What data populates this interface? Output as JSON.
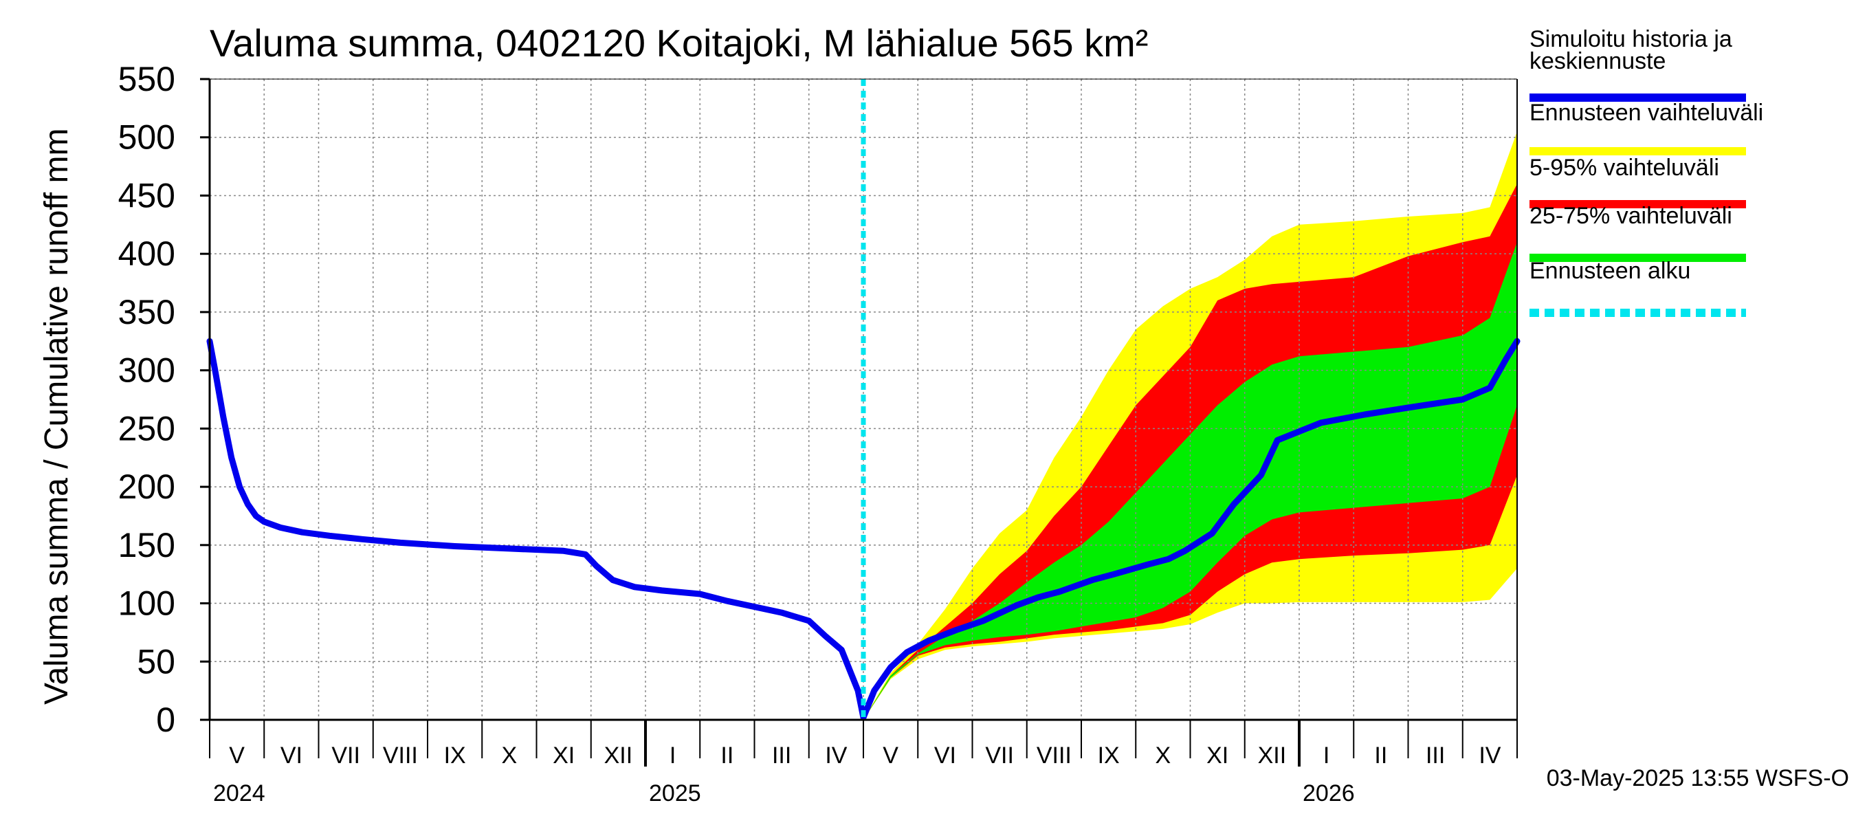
{
  "chart_data": {
    "type": "area",
    "title": "Valuma summa, 0402120 Koitajoki, M lähialue 565 km²",
    "ylabel": "Valuma summa / Cumulative runoff    mm",
    "xlabel": "",
    "ylim": [
      0,
      550
    ],
    "yticks": [
      0,
      50,
      100,
      150,
      200,
      250,
      300,
      350,
      400,
      450,
      500,
      550
    ],
    "grid": true,
    "x_unit": "months since 2024-05-01",
    "xlim": [
      0,
      24
    ],
    "forecast_start": 12,
    "month_labels": [
      {
        "label": "V",
        "x": 0.5
      },
      {
        "label": "VI",
        "x": 1.5
      },
      {
        "label": "VII",
        "x": 2.5
      },
      {
        "label": "VIII",
        "x": 3.5
      },
      {
        "label": "IX",
        "x": 4.5
      },
      {
        "label": "X",
        "x": 5.5
      },
      {
        "label": "XI",
        "x": 6.5
      },
      {
        "label": "XII",
        "x": 7.5
      },
      {
        "label": "I",
        "x": 8.5
      },
      {
        "label": "II",
        "x": 9.5
      },
      {
        "label": "III",
        "x": 10.5
      },
      {
        "label": "IV",
        "x": 11.5
      },
      {
        "label": "V",
        "x": 12.5
      },
      {
        "label": "VI",
        "x": 13.5
      },
      {
        "label": "VII",
        "x": 14.5
      },
      {
        "label": "VIII",
        "x": 15.5
      },
      {
        "label": "IX",
        "x": 16.5
      },
      {
        "label": "X",
        "x": 17.5
      },
      {
        "label": "XI",
        "x": 18.5
      },
      {
        "label": "XII",
        "x": 19.5
      },
      {
        "label": "I",
        "x": 20.5
      },
      {
        "label": "II",
        "x": 21.5
      },
      {
        "label": "III",
        "x": 22.5
      },
      {
        "label": "IV",
        "x": 23.5
      }
    ],
    "year_labels": [
      {
        "label": "2024",
        "x": 0
      },
      {
        "label": "2025",
        "x": 8
      },
      {
        "label": "2026",
        "x": 20
      }
    ],
    "year_boundaries": [
      8,
      20
    ],
    "series": [
      {
        "name": "Ennusteen vaihteluväli",
        "kind": "band",
        "color": "#ffff00",
        "x": [
          12,
          12.5,
          13,
          13.5,
          14,
          14.5,
          15,
          15.5,
          16,
          16.5,
          17,
          17.5,
          18,
          18.5,
          19,
          19.5,
          20,
          21,
          22,
          23,
          23.5,
          24
        ],
        "upper": [
          0,
          40,
          65,
          95,
          130,
          160,
          180,
          225,
          260,
          300,
          335,
          355,
          370,
          380,
          395,
          415,
          425,
          428,
          432,
          435,
          440,
          505
        ],
        "lower": [
          0,
          35,
          52,
          60,
          63,
          65,
          67,
          70,
          72,
          74,
          76,
          78,
          82,
          92,
          100,
          100,
          101,
          101,
          101,
          101,
          103,
          130
        ]
      },
      {
        "name": "5-95% vaihteluväli",
        "kind": "band",
        "color": "#ff0000",
        "x": [
          12,
          12.5,
          13,
          13.5,
          14,
          14.5,
          15,
          15.5,
          16,
          16.5,
          17,
          17.5,
          18,
          18.5,
          19,
          19.5,
          20,
          21,
          22,
          23,
          23.5,
          24
        ],
        "upper": [
          0,
          38,
          60,
          80,
          100,
          125,
          145,
          175,
          200,
          235,
          270,
          295,
          320,
          360,
          370,
          374,
          376,
          380,
          398,
          410,
          415,
          460
        ],
        "lower": [
          0,
          36,
          55,
          62,
          65,
          67,
          70,
          73,
          75,
          77,
          80,
          83,
          90,
          110,
          125,
          135,
          138,
          141,
          143,
          146,
          150,
          210
        ]
      },
      {
        "name": "25-75% vaihteluväli",
        "kind": "band",
        "color": "#00ee00",
        "x": [
          12,
          12.5,
          13,
          13.5,
          14,
          14.5,
          15,
          15.5,
          16,
          16.5,
          17,
          17.5,
          18,
          18.5,
          19,
          19.5,
          20,
          21,
          22,
          23,
          23.5,
          24
        ],
        "upper": [
          0,
          38,
          57,
          72,
          85,
          100,
          118,
          135,
          150,
          170,
          195,
          220,
          245,
          270,
          290,
          305,
          312,
          316,
          320,
          330,
          345,
          410
        ],
        "lower": [
          0,
          36,
          56,
          64,
          68,
          71,
          73,
          76,
          80,
          84,
          88,
          96,
          110,
          135,
          158,
          172,
          178,
          182,
          186,
          190,
          200,
          270
        ]
      },
      {
        "name": "Simuloitu historia ja keskiennuste",
        "kind": "line",
        "color": "#0000ee",
        "x": [
          0,
          0.1,
          0.25,
          0.4,
          0.55,
          0.7,
          0.85,
          1,
          1.3,
          1.7,
          2.2,
          2.8,
          3.5,
          4.5,
          5.5,
          6.5,
          6.9,
          7.1,
          7.4,
          7.8,
          8.3,
          9,
          9.5,
          10,
          10.5,
          11,
          11.3,
          11.6,
          11.9,
          12,
          12.2,
          12.5,
          12.8,
          13.2,
          13.7,
          14.2,
          14.8,
          15.2,
          15.6,
          16.2,
          16.6,
          17.2,
          17.6,
          17.9,
          18.4,
          18.8,
          19.3,
          19.6,
          20.4,
          21.2,
          22,
          23,
          23.5,
          23.8,
          24
        ],
        "y": [
          325,
          300,
          260,
          225,
          200,
          185,
          175,
          170,
          165,
          161,
          158,
          155,
          152,
          149,
          147,
          145,
          142,
          132,
          120,
          114,
          111,
          108,
          102,
          97,
          92,
          85,
          72,
          60,
          25,
          2,
          25,
          45,
          58,
          68,
          77,
          85,
          98,
          105,
          110,
          120,
          125,
          133,
          138,
          145,
          160,
          185,
          210,
          240,
          255,
          262,
          268,
          275,
          285,
          310,
          325
        ]
      },
      {
        "name": "Ennusteen alku",
        "kind": "vline",
        "color": "#00e5ee",
        "x": 12
      }
    ],
    "legend": [
      {
        "label": "Simuloitu historia ja\nkeskiennuste",
        "color": "#0000ee",
        "style": "solid"
      },
      {
        "label": "Ennusteen vaihteluväli",
        "color": "#ffff00",
        "style": "solid"
      },
      {
        "label": "5-95% vaihteluväli",
        "color": "#ff0000",
        "style": "solid"
      },
      {
        "label": "25-75% vaihteluväli",
        "color": "#00ee00",
        "style": "solid"
      },
      {
        "label": "Ennusteen alku",
        "color": "#00e5ee",
        "style": "dashed"
      }
    ],
    "legend_position": "right"
  },
  "footer": "03-May-2025 13:55 WSFS-O"
}
